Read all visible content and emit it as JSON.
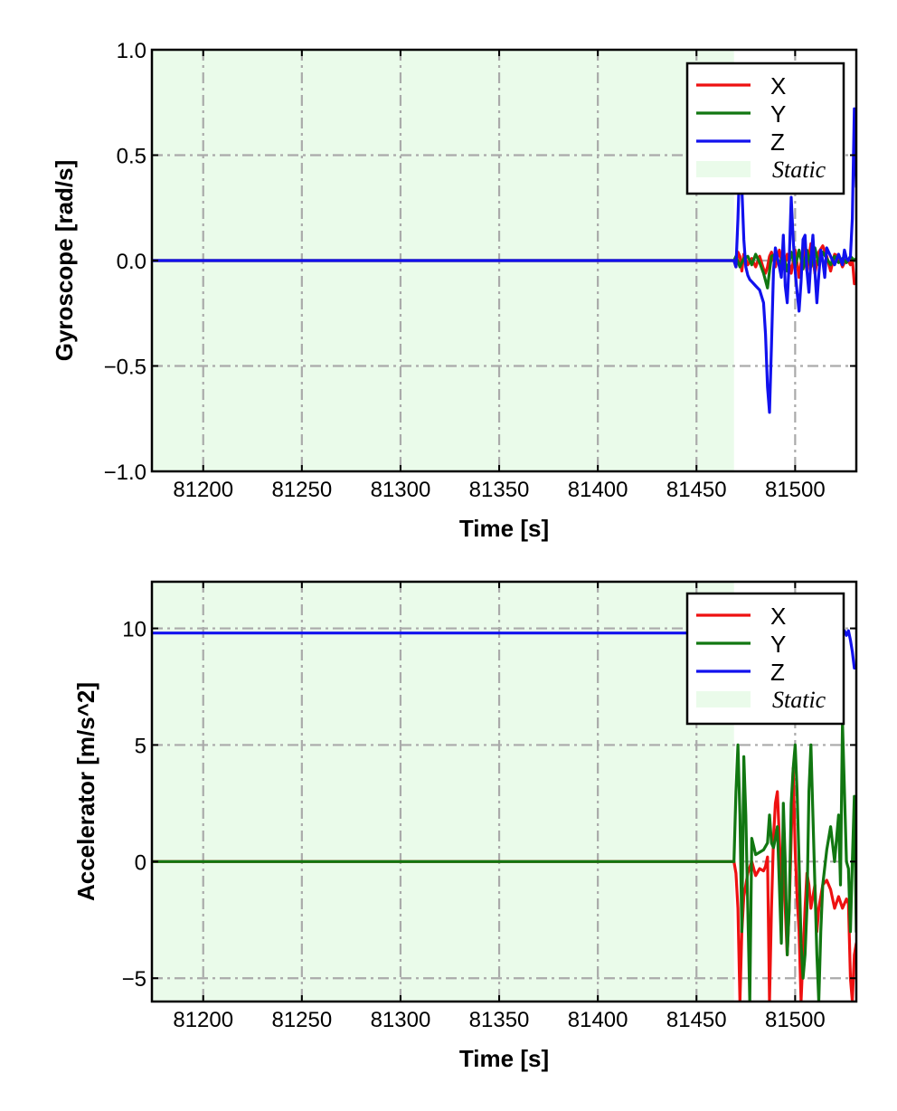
{
  "chart_data": [
    {
      "type": "line",
      "xlabel": "Time [s]",
      "ylabel": "Gyroscope [rad/s]",
      "xlim": [
        81174,
        81531
      ],
      "ylim": [
        -1.0,
        1.0
      ],
      "xticks": [
        81200,
        81250,
        81300,
        81350,
        81400,
        81450,
        81500
      ],
      "xtick_labels": [
        "81200",
        "81250",
        "81300",
        "81350",
        "81400",
        "81450",
        "81500"
      ],
      "yticks": [
        -1.0,
        -0.5,
        0.0,
        0.5,
        1.0
      ],
      "ytick_labels": [
        "−1.0",
        "−0.5",
        "0.0",
        "0.5",
        "1.0"
      ],
      "grid": true,
      "legend_position": "top-right",
      "static_region": {
        "label": "Static",
        "x": [
          81174,
          81469
        ],
        "color": "#eafbea"
      },
      "series": [
        {
          "name": "X",
          "color": "#ee1111",
          "x": [
            81174,
            81469,
            81470,
            81471,
            81472,
            81473,
            81474,
            81476,
            81478,
            81480,
            81482,
            81484,
            81485,
            81486,
            81487,
            81488,
            81490,
            81492,
            81494,
            81496,
            81498,
            81500,
            81502,
            81504,
            81506,
            81508,
            81510,
            81512,
            81514,
            81516,
            81518,
            81520,
            81522,
            81524,
            81526,
            81528,
            81529,
            81530,
            81531
          ],
          "y": [
            0.0,
            0.0,
            -0.03,
            0.04,
            0.02,
            -0.05,
            0.03,
            -0.02,
            0.01,
            -0.03,
            0.02,
            -0.04,
            -0.06,
            -0.03,
            0.02,
            0.04,
            -0.03,
            0.05,
            -0.04,
            0.03,
            -0.06,
            0.05,
            -0.08,
            0.06,
            -0.05,
            0.08,
            -0.06,
            0.04,
            0.07,
            0.02,
            -0.05,
            0.03,
            0.02,
            -0.03,
            0.01,
            -0.02,
            0.01,
            -0.11,
            -0.1
          ]
        },
        {
          "name": "Y",
          "color": "#117711",
          "x": [
            81174,
            81469,
            81470,
            81472,
            81474,
            81476,
            81478,
            81480,
            81482,
            81484,
            81486,
            81487,
            81488,
            81490,
            81492,
            81494,
            81496,
            81498,
            81500,
            81502,
            81504,
            81506,
            81508,
            81510,
            81512,
            81514,
            81516,
            81518,
            81520,
            81522,
            81524,
            81526,
            81528,
            81530,
            81531
          ],
          "y": [
            0.0,
            0.0,
            0.02,
            -0.03,
            0.01,
            0.02,
            -0.02,
            0.03,
            -0.01,
            -0.06,
            -0.13,
            -0.05,
            0.02,
            0.03,
            -0.02,
            0.03,
            -0.05,
            0.04,
            -0.03,
            0.05,
            -0.04,
            0.05,
            -0.03,
            0.06,
            -0.02,
            0.04,
            0.01,
            -0.02,
            0.02,
            -0.01,
            0.01,
            -0.01,
            0.02,
            0.0,
            0.01
          ]
        },
        {
          "name": "Z",
          "color": "#1111ee",
          "x": [
            81174,
            81469,
            81470,
            81471,
            81472,
            81473,
            81474,
            81475,
            81476,
            81477,
            81478,
            81480,
            81482,
            81484,
            81485,
            81486,
            81487,
            81488,
            81489,
            81490,
            81492,
            81493,
            81494,
            81495,
            81496,
            81497,
            81498,
            81499,
            81500,
            81501,
            81502,
            81503,
            81504,
            81505,
            81506,
            81507,
            81508,
            81509,
            81510,
            81511,
            81512,
            81513,
            81514,
            81515,
            81516,
            81518,
            81520,
            81522,
            81524,
            81525,
            81526,
            81527,
            81528,
            81529,
            81530,
            81531
          ],
          "y": [
            0.0,
            0.0,
            -0.03,
            0.2,
            0.5,
            0.35,
            0.1,
            -0.03,
            -0.07,
            -0.09,
            -0.1,
            -0.12,
            -0.14,
            -0.2,
            -0.35,
            -0.6,
            -0.72,
            -0.4,
            -0.05,
            0.06,
            -0.03,
            -0.08,
            0.12,
            -0.12,
            -0.2,
            0.0,
            0.3,
            0.1,
            -0.05,
            -0.15,
            -0.24,
            -0.1,
            0.1,
            0.12,
            -0.05,
            -0.15,
            0.0,
            0.12,
            -0.05,
            -0.2,
            -0.07,
            0.05,
            0.0,
            -0.08,
            0.06,
            0.02,
            -0.02,
            0.03,
            -0.02,
            0.05,
            0.01,
            0.0,
            0.02,
            0.2,
            0.72,
            0.35
          ]
        }
      ]
    },
    {
      "type": "line",
      "xlabel": "Time [s]",
      "ylabel": "Accelerator [m/s^2]",
      "xlim": [
        81174,
        81531
      ],
      "ylim": [
        -6,
        12
      ],
      "xticks": [
        81200,
        81250,
        81300,
        81350,
        81400,
        81450,
        81500
      ],
      "xtick_labels": [
        "81200",
        "81250",
        "81300",
        "81350",
        "81400",
        "81450",
        "81500"
      ],
      "yticks": [
        -5,
        0,
        5,
        10
      ],
      "ytick_labels": [
        "−5",
        "0",
        "5",
        "10"
      ],
      "grid": true,
      "legend_position": "top-right",
      "static_region": {
        "label": "Static",
        "x": [
          81174,
          81469
        ],
        "color": "#eafbea"
      },
      "series": [
        {
          "name": "X",
          "color": "#ee1111",
          "x": [
            81174,
            81469,
            81470,
            81471,
            81472,
            81473,
            81474,
            81475,
            81476,
            81478,
            81480,
            81482,
            81484,
            81485,
            81486,
            81487,
            81488,
            81489,
            81490,
            81491,
            81492,
            81493,
            81494,
            81495,
            81496,
            81497,
            81498,
            81499,
            81500,
            81501,
            81502,
            81503,
            81504,
            81505,
            81506,
            81507,
            81508,
            81509,
            81510,
            81511,
            81512,
            81514,
            81516,
            81518,
            81520,
            81522,
            81524,
            81526,
            81527,
            81528,
            81529,
            81530,
            81531
          ],
          "y": [
            0.0,
            0.0,
            -0.5,
            -2.0,
            -6.0,
            -3.0,
            -1.5,
            -1.0,
            -0.5,
            0.0,
            -0.6,
            -0.3,
            -0.4,
            -0.2,
            0.2,
            -6.0,
            -2.0,
            1.0,
            2.5,
            3.0,
            1.0,
            -1.0,
            0.5,
            -2.0,
            -4.0,
            -2.0,
            1.0,
            4.0,
            0.5,
            -1.5,
            -3.0,
            -6.0,
            -4.0,
            -2.0,
            -0.5,
            -1.0,
            -2.0,
            -1.5,
            -1.0,
            -3.0,
            -2.0,
            -1.0,
            -0.8,
            -1.2,
            -2.0,
            -1.5,
            -2.0,
            -1.6,
            -1.8,
            -5.0,
            -6.0,
            -4.0,
            -3.5
          ]
        },
        {
          "name": "Y",
          "color": "#117711",
          "x": [
            81174,
            81469,
            81470,
            81471,
            81472,
            81473,
            81474,
            81475,
            81476,
            81477,
            81478,
            81480,
            81482,
            81484,
            81486,
            81487,
            81488,
            81489,
            81490,
            81491,
            81492,
            81493,
            81494,
            81495,
            81496,
            81497,
            81498,
            81499,
            81500,
            81501,
            81502,
            81503,
            81504,
            81505,
            81506,
            81507,
            81508,
            81509,
            81510,
            81511,
            81512,
            81513,
            81514,
            81516,
            81518,
            81520,
            81521,
            81522,
            81523,
            81524,
            81525,
            81526,
            81527,
            81528,
            81529,
            81530,
            81531
          ],
          "y": [
            0.0,
            0.0,
            3.0,
            5.0,
            2.0,
            -3.0,
            4.5,
            2.0,
            -2.0,
            -6.0,
            1.0,
            0.3,
            0.4,
            0.5,
            0.8,
            2.0,
            0.8,
            0.6,
            1.0,
            1.5,
            -1.0,
            -3.5,
            2.5,
            0.0,
            -4.0,
            -2.0,
            2.5,
            4.0,
            5.0,
            3.0,
            0.0,
            -3.5,
            -5.0,
            -4.0,
            -2.0,
            3.0,
            5.0,
            2.0,
            -1.0,
            -4.0,
            -6.0,
            -3.0,
            -1.0,
            0.5,
            1.5,
            0.0,
            1.0,
            2.0,
            -1.0,
            6.0,
            3.0,
            0.0,
            -0.3,
            -3.0,
            0.0,
            2.8,
            -3.0
          ]
        },
        {
          "name": "Z",
          "color": "#1111ee",
          "x": [
            81174,
            81469,
            81470,
            81472,
            81474,
            81476,
            81478,
            81480,
            81482,
            81484,
            81486,
            81488,
            81490,
            81492,
            81494,
            81496,
            81498,
            81500,
            81502,
            81504,
            81506,
            81508,
            81510,
            81512,
            81514,
            81516,
            81518,
            81520,
            81522,
            81524,
            81525,
            81526,
            81527,
            81528,
            81529,
            81530,
            81531
          ],
          "y": [
            9.8,
            9.8,
            9.8,
            9.8,
            9.8,
            9.8,
            9.8,
            9.8,
            9.8,
            9.8,
            9.8,
            9.8,
            9.8,
            9.8,
            9.8,
            9.8,
            9.8,
            9.8,
            9.8,
            9.8,
            9.8,
            9.8,
            9.8,
            9.8,
            9.8,
            9.8,
            9.8,
            9.8,
            9.8,
            9.8,
            9.9,
            9.7,
            9.9,
            9.5,
            9.0,
            8.3,
            8.3
          ]
        }
      ]
    }
  ]
}
